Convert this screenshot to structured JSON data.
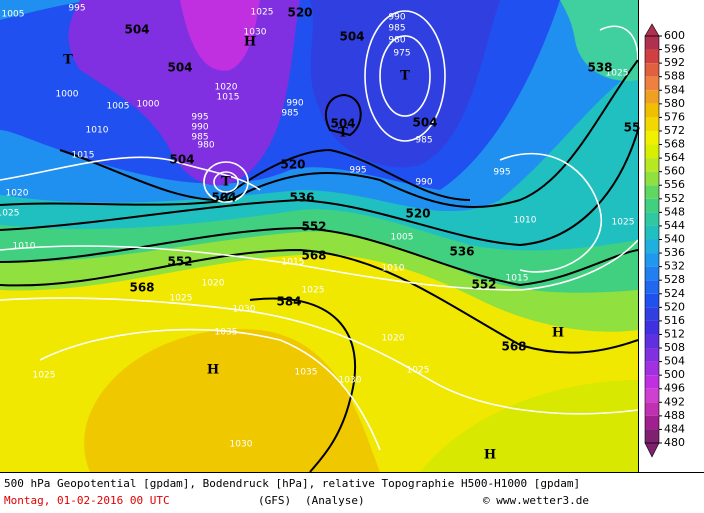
{
  "map": {
    "geopotential_labels": [
      "504",
      "504",
      "504",
      "504",
      "504",
      "504",
      "504",
      "520",
      "520",
      "520",
      "536",
      "552",
      "568",
      "552",
      "568",
      "584",
      "536",
      "552",
      "568",
      "538",
      "55"
    ],
    "pressure_labels": [
      "995",
      "1025",
      "1030",
      "990",
      "985",
      "980",
      "975",
      "1000",
      "1005",
      "1000",
      "1010",
      "1015",
      "1020",
      "1025",
      "1010",
      "1020",
      "1015",
      "990",
      "985",
      "995",
      "990",
      "985",
      "980",
      "985",
      "995",
      "990",
      "995",
      "1010",
      "1015",
      "1025",
      "1025",
      "1005",
      "1010",
      "1015",
      "1020",
      "1025",
      "1025",
      "1030",
      "1035",
      "1020",
      "1025",
      "1025",
      "1035",
      "1030",
      "1030",
      "1005"
    ],
    "system_markers": [
      "T",
      "T",
      "T",
      "T",
      "H",
      "H",
      "H",
      "H"
    ]
  },
  "colorbar": {
    "ticks": [
      600,
      596,
      592,
      588,
      584,
      580,
      576,
      572,
      568,
      564,
      560,
      556,
      552,
      548,
      544,
      540,
      536,
      532,
      528,
      524,
      520,
      516,
      512,
      508,
      504,
      500,
      496,
      492,
      488,
      484,
      480
    ],
    "colors": [
      "#b03050",
      "#d04040",
      "#e06040",
      "#f08040",
      "#f0a020",
      "#f0c000",
      "#f0d800",
      "#f0f000",
      "#d8f000",
      "#b8e820",
      "#90e040",
      "#60d860",
      "#40d080",
      "#30c8a0",
      "#20c0c0",
      "#20b0e0",
      "#2098f0",
      "#2080f0",
      "#2068f0",
      "#2050f0",
      "#3040e0",
      "#4030e0",
      "#6030e0",
      "#8030e0",
      "#a030e0",
      "#c030e0",
      "#d040d0",
      "#c030b0",
      "#a02090",
      "#802070"
    ]
  },
  "footer": {
    "line1": "500 hPa Geopotential [gpdam], Bodendruck [hPa], relative Topographie H500-H1000 [gpdam]",
    "date": "Montag, 01-02-2016  00 UTC",
    "model": "(GFS)",
    "mode": "(Analyse)",
    "credit": "© www.wetter3.de"
  }
}
